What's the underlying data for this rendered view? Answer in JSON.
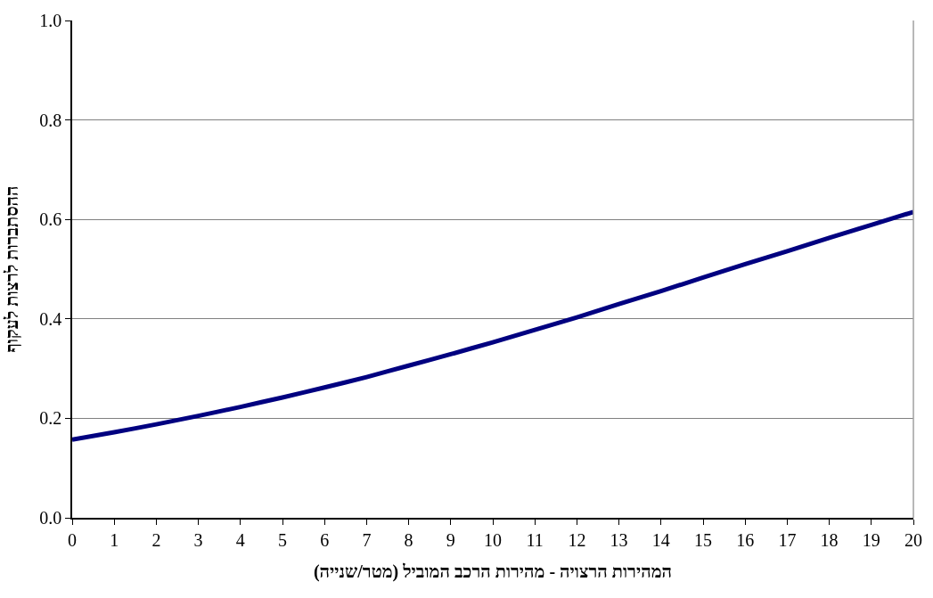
{
  "chart_data": {
    "type": "line",
    "xlabel": "המהירות הרצויה - מהירות הרכב המוביל (מטר/שנייה)",
    "ylabel": "ההסתברות לרצות לעקוף",
    "x": [
      0,
      1,
      2,
      3,
      4,
      5,
      6,
      7,
      8,
      9,
      10,
      11,
      12,
      13,
      14,
      15,
      16,
      17,
      18,
      19,
      20
    ],
    "series": [
      {
        "color": "#000080",
        "values": [
          0.157,
          0.172,
          0.188,
          0.205,
          0.223,
          0.242,
          0.262,
          0.283,
          0.306,
          0.329,
          0.353,
          0.378,
          0.403,
          0.43,
          0.456,
          0.483,
          0.51,
          0.536,
          0.563,
          0.589,
          0.615
        ]
      }
    ],
    "xlim": [
      0,
      20
    ],
    "xticks": [
      0,
      1,
      2,
      3,
      4,
      5,
      6,
      7,
      8,
      9,
      10,
      11,
      12,
      13,
      14,
      15,
      16,
      17,
      18,
      19,
      20
    ],
    "ylim": [
      0,
      1
    ],
    "yticks": [
      {
        "value": 0,
        "label": "0.0"
      },
      {
        "value": 0.2,
        "label": "0.2"
      },
      {
        "value": 0.4,
        "label": "0.4"
      },
      {
        "value": 0.6,
        "label": "0.6"
      },
      {
        "value": 0.8,
        "label": "0.8"
      },
      {
        "value": 1,
        "label": "1.0"
      }
    ],
    "grid": "y",
    "marker": "none",
    "line_style": "solid"
  }
}
